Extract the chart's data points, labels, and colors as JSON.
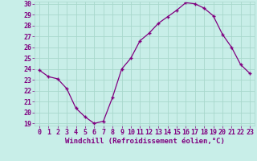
{
  "x": [
    0,
    1,
    2,
    3,
    4,
    5,
    6,
    7,
    8,
    9,
    10,
    11,
    12,
    13,
    14,
    15,
    16,
    17,
    18,
    19,
    20,
    21,
    22,
    23
  ],
  "y": [
    23.9,
    23.3,
    23.1,
    22.2,
    20.4,
    19.6,
    19.0,
    19.2,
    21.4,
    24.0,
    25.0,
    26.6,
    27.3,
    28.2,
    28.8,
    29.4,
    30.1,
    30.0,
    29.6,
    28.9,
    27.2,
    26.0,
    24.4,
    23.6
  ],
  "line_color": "#800080",
  "marker": "+",
  "marker_color": "#800080",
  "bg_color": "#c8eee8",
  "grid_color": "#a8d8cc",
  "xlabel": "Windchill (Refroidissement éolien,°C)",
  "ylabel": "",
  "ylim": [
    19,
    30
  ],
  "xlim": [
    -0.5,
    23.5
  ],
  "yticks": [
    19,
    20,
    21,
    22,
    23,
    24,
    25,
    26,
    27,
    28,
    29,
    30
  ],
  "xticks": [
    0,
    1,
    2,
    3,
    4,
    5,
    6,
    7,
    8,
    9,
    10,
    11,
    12,
    13,
    14,
    15,
    16,
    17,
    18,
    19,
    20,
    21,
    22,
    23
  ],
  "xlabel_fontsize": 6.5,
  "tick_fontsize": 6.0
}
